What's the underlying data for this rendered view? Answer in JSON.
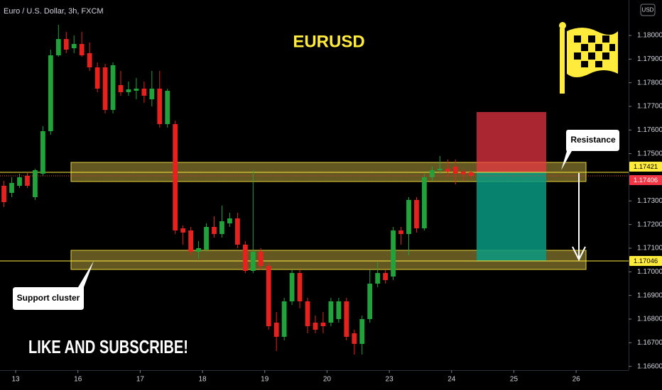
{
  "chart_data": {
    "type": "candlestick",
    "header": "Euro / U.S. Dollar, 3h, FXCM",
    "title": "EURUSD",
    "currency": "USD",
    "annotations": [
      "Resistance",
      "Support cluster",
      "LIKE AND SUBSCRIBE!"
    ],
    "up_color": "#1fa33a",
    "down_color": "#e5221d",
    "x": [
      0,
      1,
      2,
      3,
      4,
      5,
      6,
      7,
      8,
      9,
      10,
      11,
      12,
      13,
      14,
      15,
      16,
      17,
      18,
      19,
      20,
      21,
      22,
      23,
      24,
      25,
      26,
      27,
      28,
      29,
      30,
      31,
      32,
      33,
      34,
      35,
      36,
      37,
      38,
      39,
      40,
      41,
      42,
      43,
      44,
      45,
      46,
      47,
      48,
      49,
      50,
      51,
      52,
      53,
      54,
      55,
      56,
      57,
      58,
      59,
      60
    ],
    "open": [
      1.17364,
      1.17334,
      1.17364,
      1.17406,
      1.17316,
      1.17415,
      1.17595,
      1.17916,
      1.17985,
      1.17946,
      1.17964,
      1.17925,
      1.17865,
      1.17865,
      1.17685,
      1.1779,
      1.1776,
      1.17766,
      1.17775,
      1.1773,
      1.17775,
      1.17625,
      1.17625,
      1.17184,
      1.17175,
      1.17085,
      1.17094,
      1.1719,
      1.1716,
      1.17205,
      1.17226,
      1.17115,
      1.17004,
      1.17085,
      1.17025,
      1.16785,
      1.16725,
      1.16875,
      1.16995,
      1.16875,
      1.16785,
      1.16785,
      1.16785,
      1.168,
      1.16875,
      1.1674,
      1.16695,
      1.168,
      1.1695,
      1.16995,
      1.1698,
      1.17175,
      1.1716,
      1.17304,
      1.17184,
      1.174,
      1.1743,
      1.17436,
      1.17445,
      1.17424,
      1.17421
    ],
    "high": [
      1.17385,
      1.174,
      1.17415,
      1.17421,
      1.17436,
      1.17616,
      1.1794,
      1.18045,
      1.18015,
      1.18,
      1.18015,
      1.1797,
      1.17886,
      1.1788,
      1.17886,
      1.1785,
      1.17805,
      1.1782,
      1.17805,
      1.1785,
      1.1785,
      1.17775,
      1.1764,
      1.17196,
      1.1719,
      1.1713,
      1.17205,
      1.17235,
      1.1728,
      1.1725,
      1.1725,
      1.1713,
      1.1743,
      1.171,
      1.1704,
      1.1683,
      1.1689,
      1.1701,
      1.1701,
      1.1689,
      1.16815,
      1.1683,
      1.1689,
      1.1689,
      1.1689,
      1.16755,
      1.16815,
      1.1701,
      1.1704,
      1.1701,
      1.1719,
      1.1719,
      1.17316,
      1.17316,
      1.17415,
      1.17445,
      1.1749,
      1.17475,
      1.17475,
      1.17436,
      1.1743
    ],
    "low": [
      1.17274,
      1.17316,
      1.17355,
      1.17355,
      1.17304,
      1.17406,
      1.1758,
      1.1791,
      1.17925,
      1.17925,
      1.1791,
      1.1785,
      1.1776,
      1.1767,
      1.1767,
      1.17745,
      1.17745,
      1.1773,
      1.17715,
      1.177,
      1.1761,
      1.1761,
      1.1716,
      1.17115,
      1.1707,
      1.17055,
      1.17085,
      1.17145,
      1.17145,
      1.1719,
      1.171,
      1.16995,
      1.16995,
      1.1701,
      1.16755,
      1.16665,
      1.1671,
      1.1686,
      1.16845,
      1.1674,
      1.1674,
      1.1674,
      1.1677,
      1.16785,
      1.1671,
      1.1665,
      1.1665,
      1.16785,
      1.16935,
      1.1695,
      1.16965,
      1.17115,
      1.1707,
      1.17166,
      1.17175,
      1.17385,
      1.17415,
      1.174,
      1.1737,
      1.17385,
      1.17395
    ],
    "close": [
      1.17295,
      1.17376,
      1.174,
      1.17364,
      1.1743,
      1.17595,
      1.17916,
      1.17985,
      1.1794,
      1.17964,
      1.17916,
      1.17865,
      1.17775,
      1.17685,
      1.17874,
      1.1776,
      1.17772,
      1.17775,
      1.17745,
      1.17775,
      1.17625,
      1.17766,
      1.17175,
      1.17166,
      1.17085,
      1.171,
      1.1719,
      1.1716,
      1.17214,
      1.17226,
      1.17115,
      1.17004,
      1.17085,
      1.17025,
      1.1677,
      1.16725,
      1.16875,
      1.16995,
      1.16875,
      1.1677,
      1.16755,
      1.1677,
      1.16875,
      1.16875,
      1.16725,
      1.16695,
      1.168,
      1.1695,
      1.16995,
      1.16965,
      1.17175,
      1.1716,
      1.17304,
      1.17184,
      1.174,
      1.1743,
      1.17436,
      1.17424,
      1.17415,
      1.17412,
      1.17406
    ],
    "price_lines": [
      {
        "value": 1.17421,
        "color": "#ffeb3b"
      },
      {
        "value": 1.17406,
        "color": "#f23645"
      },
      {
        "value": 1.17046,
        "color": "#ffeb3b"
      }
    ],
    "xlim": [
      -0.51,
      80.24
    ],
    "ylim": [
      1.16584,
      1.1815
    ],
    "xticks": [
      {
        "value": 1.5,
        "label": "13"
      },
      {
        "value": 9.5,
        "label": "16"
      },
      {
        "value": 17.5,
        "label": "17"
      },
      {
        "value": 25.5,
        "label": "18"
      },
      {
        "value": 33.5,
        "label": "19"
      },
      {
        "value": 41.5,
        "label": "20"
      },
      {
        "value": 49.5,
        "label": "23"
      },
      {
        "value": 57.5,
        "label": "24"
      },
      {
        "value": 65.5,
        "label": "25"
      },
      {
        "value": 73.5,
        "label": "26"
      }
    ],
    "yticks": [
      {
        "value": 1.18,
        "label": "1.18000"
      },
      {
        "value": 1.179,
        "label": "1.17900"
      },
      {
        "value": 1.178,
        "label": "1.17800"
      },
      {
        "value": 1.177,
        "label": "1.17700"
      },
      {
        "value": 1.176,
        "label": "1.17600"
      },
      {
        "value": 1.175,
        "label": "1.17500"
      },
      {
        "value": 1.173,
        "label": "1.17300"
      },
      {
        "value": 1.172,
        "label": "1.17200"
      },
      {
        "value": 1.171,
        "label": "1.17100"
      },
      {
        "value": 1.17,
        "label": "1.17000"
      },
      {
        "value": 1.169,
        "label": "1.16900"
      },
      {
        "value": 1.168,
        "label": "1.16800"
      },
      {
        "value": 1.167,
        "label": "1.16700"
      },
      {
        "value": 1.166,
        "label": "1.16600"
      }
    ]
  }
}
